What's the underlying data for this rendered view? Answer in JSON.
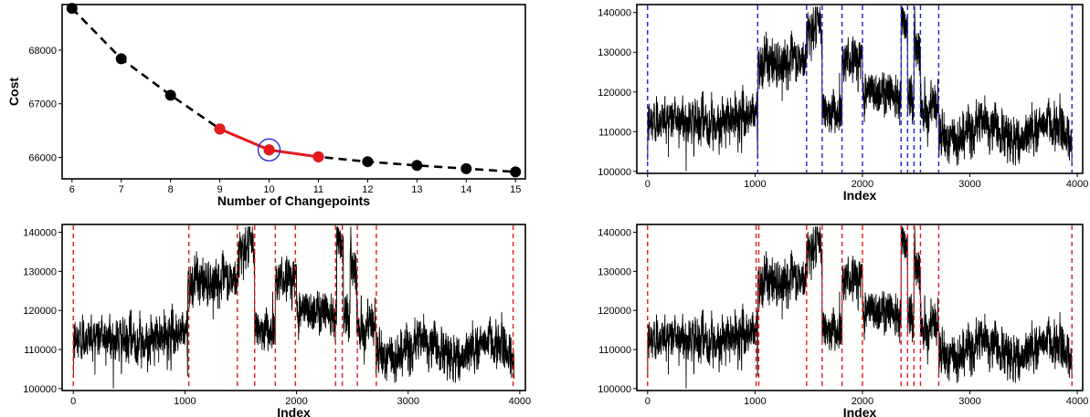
{
  "chart_data": [
    {
      "type": "line",
      "panel": "top-left",
      "xlabel": "Number of Changepoints",
      "ylabel": "Cost",
      "xlim": [
        5.8,
        15.2
      ],
      "ylim": [
        65600,
        68850
      ],
      "xticks": [
        6,
        7,
        8,
        9,
        10,
        11,
        12,
        13,
        14,
        15
      ],
      "yticks": [
        66000,
        67000,
        68000
      ],
      "ytick_labels": [
        "66000",
        "67000",
        "68000"
      ],
      "grid": false,
      "legend": "none",
      "series": [
        {
          "style": "dashed",
          "color": "#000000",
          "x": [
            6,
            7,
            8,
            9,
            10,
            11,
            12,
            13,
            14,
            15
          ],
          "y": [
            68780,
            67840,
            67160,
            66530,
            66140,
            66010,
            65920,
            65850,
            65790,
            65730
          ]
        },
        {
          "style": "solid",
          "color": "#e41a1c",
          "x": [
            9,
            10,
            11
          ],
          "y": [
            66530,
            66140,
            66010
          ]
        }
      ],
      "highlight": {
        "x": 10,
        "y": 66140,
        "color": "#1f1fd0"
      }
    },
    {
      "type": "line",
      "panel": "top-right",
      "xlabel": "Index",
      "ylabel": "",
      "xlim": [
        -100,
        4050
      ],
      "ylim": [
        99500,
        142000
      ],
      "xticks": [
        0,
        1000,
        2000,
        3000,
        4000
      ],
      "yticks": [
        100000,
        110000,
        120000,
        130000,
        140000
      ],
      "ytick_labels": [
        "100000",
        "110000",
        "120000",
        "130000",
        "140000"
      ],
      "n": 3950,
      "grid": false,
      "legend": "none",
      "changepoint_color": "#1f1fd0",
      "changepoints": [
        0,
        1025,
        1480,
        1625,
        1810,
        2000,
        2360,
        2420,
        2480,
        2540,
        2710,
        3950
      ]
    },
    {
      "type": "line",
      "panel": "bottom-left",
      "xlabel": "Index",
      "ylabel": "",
      "xlim": [
        -100,
        4050
      ],
      "ylim": [
        99500,
        142000
      ],
      "xticks": [
        0,
        1000,
        2000,
        3000,
        4000
      ],
      "yticks": [
        100000,
        110000,
        120000,
        130000,
        140000
      ],
      "ytick_labels": [
        "100000",
        "110000",
        "120000",
        "130000",
        "140000"
      ],
      "n": 3950,
      "grid": false,
      "legend": "none",
      "changepoint_color": "#e41a1c",
      "changepoints": [
        0,
        1035,
        1470,
        1625,
        1810,
        1990,
        2350,
        2410,
        2545,
        2715,
        3940
      ]
    },
    {
      "type": "line",
      "panel": "bottom-right",
      "xlabel": "Index",
      "ylabel": "",
      "xlim": [
        -100,
        4050
      ],
      "ylim": [
        99500,
        142000
      ],
      "xticks": [
        0,
        1000,
        2000,
        3000,
        4000
      ],
      "yticks": [
        100000,
        110000,
        120000,
        130000,
        140000
      ],
      "ytick_labels": [
        "100000",
        "110000",
        "120000",
        "130000",
        "140000"
      ],
      "n": 3950,
      "grid": false,
      "legend": "none",
      "changepoint_color": "#e41a1c",
      "changepoints": [
        0,
        1010,
        1035,
        1480,
        1625,
        1810,
        2000,
        2360,
        2420,
        2480,
        2540,
        2710,
        3950
      ]
    }
  ],
  "series_levels": {
    "segments": [
      {
        "start": 0,
        "end": 500,
        "mean": 112000
      },
      {
        "start": 500,
        "end": 1025,
        "mean": 113500
      },
      {
        "start": 1025,
        "end": 1480,
        "mean": 127500
      },
      {
        "start": 1480,
        "end": 1625,
        "mean": 136000
      },
      {
        "start": 1625,
        "end": 1810,
        "mean": 115000
      },
      {
        "start": 1810,
        "end": 2000,
        "mean": 128500
      },
      {
        "start": 2000,
        "end": 2360,
        "mean": 120000
      },
      {
        "start": 2360,
        "end": 2420,
        "mean": 137500
      },
      {
        "start": 2420,
        "end": 2480,
        "mean": 119000
      },
      {
        "start": 2480,
        "end": 2540,
        "mean": 132500
      },
      {
        "start": 2540,
        "end": 2710,
        "mean": 116000
      },
      {
        "start": 2710,
        "end": 3950,
        "mean": 110000
      }
    ],
    "noise_sd": 2300
  }
}
